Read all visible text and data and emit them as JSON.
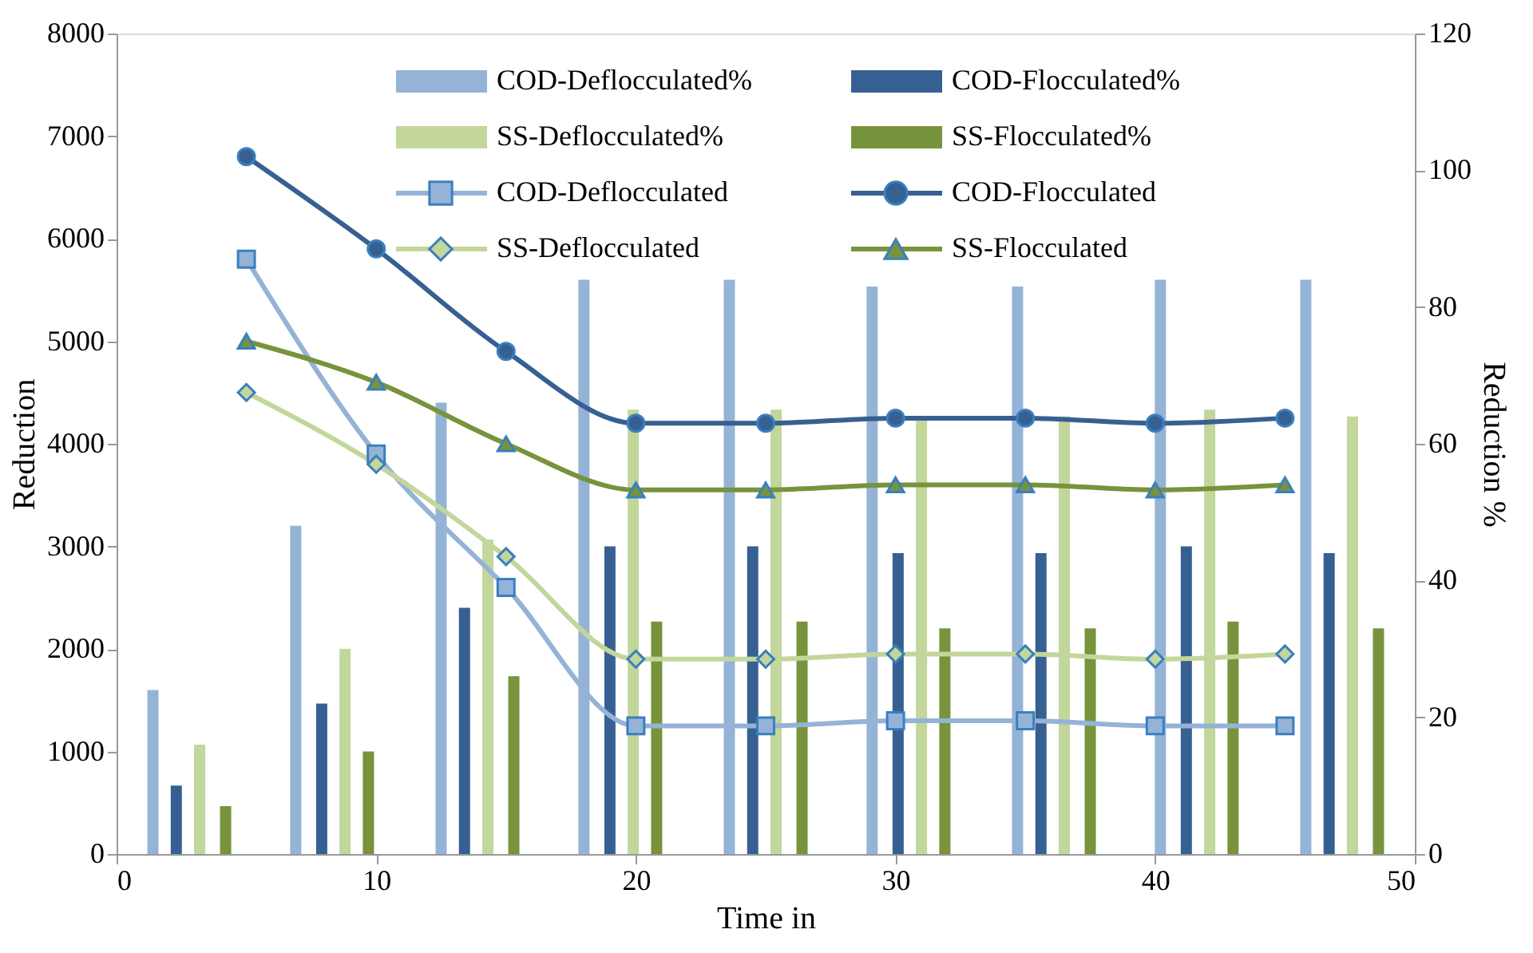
{
  "chart_data": {
    "type": "bar",
    "xlabel": "Time in",
    "ylabel": "Reduction",
    "y2label": "Reduction %",
    "xlim": [
      0,
      50
    ],
    "xticks": [
      0,
      10,
      20,
      30,
      40,
      50
    ],
    "ylim": [
      0,
      8000
    ],
    "yticks": [
      0,
      1000,
      2000,
      3000,
      4000,
      5000,
      6000,
      7000,
      8000
    ],
    "y2lim": [
      0,
      120
    ],
    "y2ticks": [
      0,
      20,
      40,
      60,
      80,
      100,
      120
    ],
    "grid": false,
    "legend": "top",
    "series": [
      {
        "name": "COD-Deflocculated%",
        "axis": "y2",
        "color": "#95b3d7",
        "x": [
          1.4,
          6.9,
          12.5,
          18.0,
          23.6,
          29.1,
          34.7,
          40.2,
          45.8
        ],
        "values": [
          24,
          48,
          66,
          84,
          84,
          83,
          83,
          84,
          84
        ]
      },
      {
        "name": "COD-Flocculated%",
        "axis": "y2",
        "color": "#376092",
        "x": [
          2.3,
          7.9,
          13.4,
          19.0,
          24.5,
          30.1,
          35.6,
          41.2,
          46.7
        ],
        "values": [
          10,
          22,
          36,
          45,
          45,
          44,
          44,
          45,
          44
        ]
      },
      {
        "name": "SS-Deflocculated%",
        "axis": "y2",
        "color": "#c3d69b",
        "x": [
          3.2,
          8.8,
          14.3,
          19.9,
          25.4,
          31.0,
          36.5,
          42.1,
          47.6
        ],
        "values": [
          16,
          30,
          46,
          65,
          65,
          64,
          64,
          65,
          64
        ]
      },
      {
        "name": "SS-Flocculated%",
        "axis": "y2",
        "color": "#77933c",
        "x": [
          4.2,
          9.7,
          15.3,
          20.8,
          26.4,
          31.9,
          37.5,
          43.0,
          48.6
        ],
        "values": [
          7,
          15,
          26,
          34,
          34,
          33,
          33,
          34,
          33
        ]
      },
      {
        "name": "COD-Deflocculated",
        "type": "line",
        "marker": "square",
        "line_style": "solid",
        "color": "#95b3d7",
        "x": [
          5,
          10,
          15,
          20,
          25,
          30,
          35,
          40,
          45
        ],
        "values": [
          5800,
          3900,
          2600,
          1250,
          1250,
          1300,
          1300,
          1250,
          1250
        ]
      },
      {
        "name": "COD-Flocculated",
        "type": "line",
        "marker": "circle",
        "line_style": "solid",
        "color": "#376092",
        "x": [
          5,
          10,
          15,
          20,
          25,
          30,
          35,
          40,
          45
        ],
        "values": [
          6800,
          5900,
          4900,
          4200,
          4200,
          4250,
          4250,
          4200,
          4250
        ]
      },
      {
        "name": "SS-Deflocculated",
        "type": "line",
        "marker": "diamond",
        "line_style": "solid",
        "color": "#c3d69b",
        "x": [
          5,
          10,
          15,
          20,
          25,
          30,
          35,
          40,
          45
        ],
        "values": [
          4500,
          3800,
          2900,
          1900,
          1900,
          1950,
          1950,
          1900,
          1950
        ]
      },
      {
        "name": "SS-Flocculated",
        "type": "line",
        "marker": "triangle",
        "line_style": "solid",
        "color": "#77933c",
        "x": [
          5,
          10,
          15,
          20,
          25,
          30,
          35,
          40,
          45
        ],
        "values": [
          5000,
          4600,
          4000,
          3550,
          3550,
          3600,
          3600,
          3550,
          3600
        ]
      }
    ]
  }
}
